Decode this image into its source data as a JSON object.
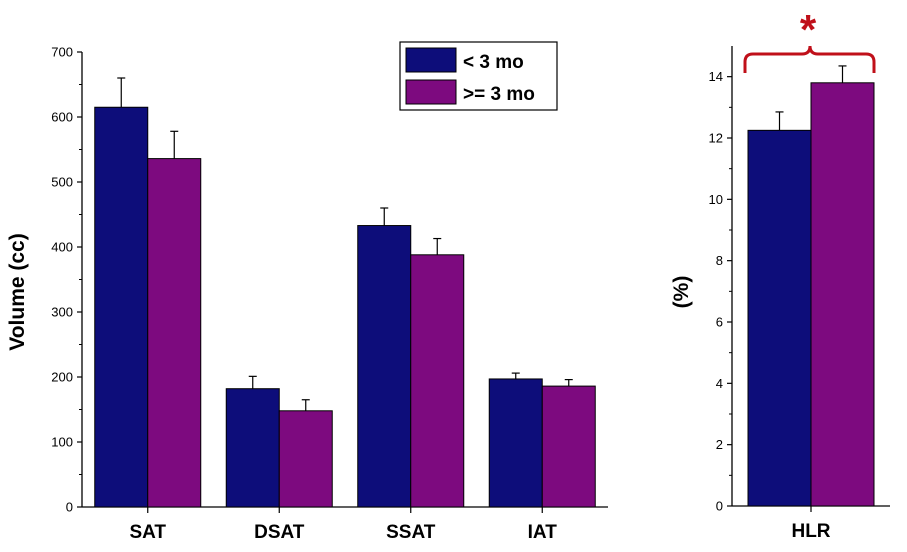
{
  "colors": {
    "series_lt3": "#0d0d7a",
    "series_ge3": "#7d0a7f",
    "significance": "#c0101a",
    "axis": "#000000"
  },
  "significance_marker": "*",
  "chart_data": [
    {
      "type": "bar",
      "title": "",
      "xlabel": "",
      "ylabel": "Volume (cc)",
      "ylim": [
        0,
        700
      ],
      "yticks": [
        "0",
        "100",
        "200",
        "300",
        "400",
        "500",
        "600",
        "700"
      ],
      "categories": [
        "SAT",
        "DSAT",
        "SSAT",
        "IAT"
      ],
      "series": [
        {
          "name": "< 3 mo",
          "values": [
            615,
            182,
            433,
            197
          ],
          "errors": [
            45,
            19,
            27,
            9
          ]
        },
        {
          "name": ">= 3 mo",
          "values": [
            536,
            148,
            388,
            186
          ],
          "errors": [
            42,
            17,
            25,
            10
          ]
        }
      ],
      "legend": "top-center",
      "legend_entries": [
        "< 3 mo",
        ">= 3 mo"
      ]
    },
    {
      "type": "bar",
      "title": "",
      "xlabel": "",
      "ylabel": "(%)",
      "ylim": [
        0,
        15
      ],
      "yticks": [
        "0",
        "2",
        "4",
        "6",
        "8",
        "10",
        "12",
        "14"
      ],
      "categories": [
        "HLR"
      ],
      "series": [
        {
          "name": "< 3 mo",
          "values": [
            12.25
          ],
          "errors": [
            0.6
          ]
        },
        {
          "name": ">= 3 mo",
          "values": [
            13.8
          ],
          "errors": [
            0.55
          ]
        }
      ],
      "annotation": "*"
    }
  ]
}
